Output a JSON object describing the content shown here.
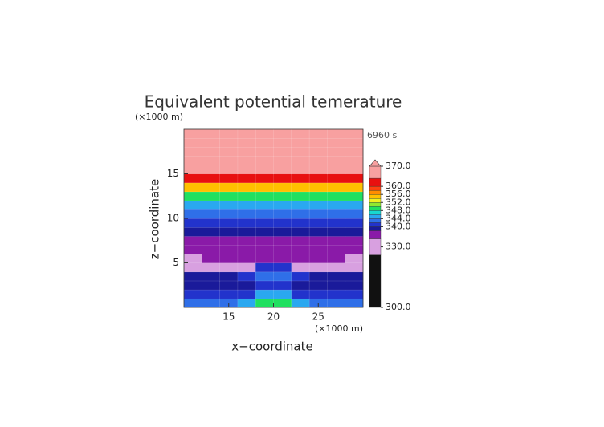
{
  "chart_data": {
    "type": "contour",
    "title": "Equivalent potential temerature",
    "ylabel": "z−coordinate",
    "xlabel": "x−coordinate",
    "y_unit": "(×1000 m)",
    "x_unit": "(×1000 m)",
    "time_label": "6960 s",
    "xlim": [
      10,
      30
    ],
    "ylim": [
      0,
      20
    ],
    "xticks": [
      15,
      20,
      25
    ],
    "yticks": [
      5,
      10,
      15
    ],
    "x": [
      11,
      13,
      15,
      17,
      19,
      21,
      23,
      25,
      27,
      29
    ],
    "z": [
      0.5,
      1.5,
      2.5,
      3.5,
      4.5,
      5.5,
      6.5,
      7.5,
      8.5,
      9.5,
      10.5,
      11.5,
      12.5,
      13.5,
      14.5,
      15.5,
      16.5,
      17.5,
      18.5,
      19.5
    ],
    "values": [
      [
        343,
        343,
        343,
        345,
        348,
        348,
        345,
        343,
        343,
        343
      ],
      [
        340,
        340,
        340,
        341,
        344,
        344,
        341,
        340,
        340,
        340
      ],
      [
        339,
        339,
        339,
        339,
        341,
        341,
        339,
        339,
        339,
        339
      ],
      [
        339,
        339,
        339,
        340,
        343,
        343,
        340,
        339,
        339,
        339
      ],
      [
        330,
        330,
        330,
        332,
        341,
        341,
        332,
        330,
        330,
        330
      ],
      [
        330,
        335,
        335,
        335,
        337,
        337,
        335,
        335,
        335,
        330
      ],
      [
        335,
        335,
        335,
        335,
        335,
        335,
        335,
        335,
        335,
        335
      ],
      [
        337,
        337,
        337,
        337,
        337,
        337,
        337,
        337,
        337,
        337
      ],
      [
        339,
        339,
        339,
        339,
        339,
        339,
        339,
        339,
        339,
        339
      ],
      [
        341,
        341,
        341,
        341,
        341,
        341,
        341,
        341,
        341,
        341
      ],
      [
        343,
        343,
        343,
        343,
        343,
        343,
        343,
        343,
        343,
        343
      ],
      [
        345,
        345,
        345,
        345,
        345,
        345,
        345,
        345,
        345,
        345
      ],
      [
        349,
        349,
        349,
        349,
        349,
        349,
        349,
        349,
        349,
        349
      ],
      [
        355,
        355,
        355,
        355,
        355,
        355,
        355,
        355,
        355,
        355
      ],
      [
        361,
        361,
        361,
        361,
        361,
        361,
        361,
        361,
        361,
        361
      ],
      [
        367,
        367,
        367,
        367,
        367,
        367,
        367,
        367,
        367,
        367
      ],
      [
        367,
        367,
        367,
        367,
        367,
        367,
        367,
        367,
        367,
        367
      ],
      [
        367,
        367,
        367,
        367,
        367,
        367,
        367,
        367,
        367,
        367
      ],
      [
        367,
        367,
        367,
        367,
        367,
        367,
        367,
        367,
        367,
        367
      ],
      [
        367,
        367,
        367,
        367,
        367,
        367,
        367,
        367,
        367,
        367
      ]
    ],
    "colorbar": {
      "levels": [
        300,
        326,
        334,
        338,
        340,
        342,
        344,
        346,
        348,
        350,
        352,
        354,
        356,
        358,
        360,
        364,
        370
      ],
      "colors": [
        "#111111",
        "#d8a0e0",
        "#8a1aa8",
        "#1a1a9a",
        "#2233cc",
        "#2f6fe8",
        "#2aa8f0",
        "#18d8d0",
        "#20e060",
        "#90e830",
        "#f0f020",
        "#ffc000",
        "#ff8c00",
        "#ff4010",
        "#e81010",
        "#f8a0a0"
      ],
      "extend_color": "#f8a0a0",
      "ticks": [
        {
          "value": 300,
          "label": "300.0"
        },
        {
          "value": 330,
          "label": "330.0"
        },
        {
          "value": 340,
          "label": "340.0"
        },
        {
          "value": 344,
          "label": "344.0"
        },
        {
          "value": 348,
          "label": "348.0"
        },
        {
          "value": 352,
          "label": "352.0"
        },
        {
          "value": 356,
          "label": "356.0"
        },
        {
          "value": 360,
          "label": "360.0"
        },
        {
          "value": 370,
          "label": "370.0"
        }
      ]
    }
  }
}
